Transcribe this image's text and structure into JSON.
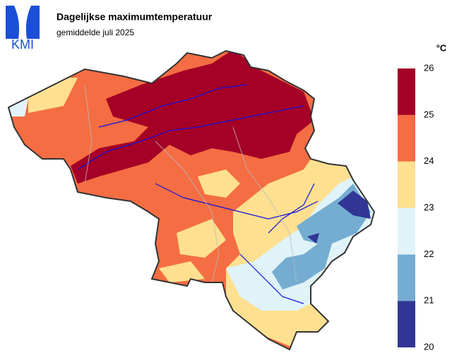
{
  "header": {
    "logo": "KMI",
    "title": "Dagelijkse maximumtemperatuur",
    "subtitle": "gemiddelde juli 2025"
  },
  "legend": {
    "unit": "°C",
    "ticks": [
      20,
      21,
      22,
      23,
      24,
      25,
      26
    ],
    "colors": [
      "#313695",
      "#74add1",
      "#e0f3f8",
      "#fee090",
      "#f46d43",
      "#a50026"
    ]
  }
}
